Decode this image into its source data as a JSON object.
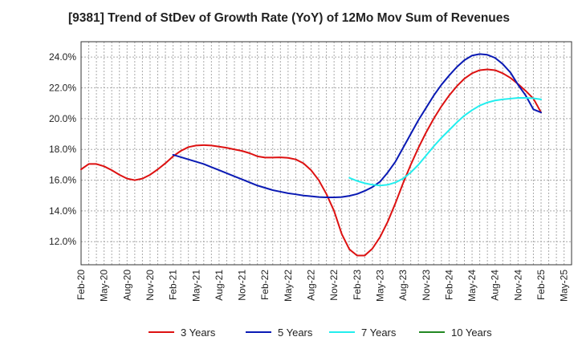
{
  "chart_data": {
    "type": "line",
    "title": "[9381]  Trend of StDev of Growth Rate (YoY) of 12Mo Mov Sum of Revenues",
    "xlabel": "",
    "ylabel": "",
    "x_tick_labels": [
      "Feb-20",
      "May-20",
      "Aug-20",
      "Nov-20",
      "Feb-21",
      "May-21",
      "Aug-21",
      "Nov-21",
      "Feb-22",
      "May-22",
      "Aug-22",
      "Nov-22",
      "Feb-23",
      "May-23",
      "Aug-23",
      "Nov-23",
      "Feb-24",
      "May-24",
      "Aug-24",
      "Nov-24",
      "Feb-25",
      "May-25"
    ],
    "y_tick_labels": [
      "12.0%",
      "14.0%",
      "16.0%",
      "18.0%",
      "20.0%",
      "22.0%",
      "24.0%"
    ],
    "y_ticks": [
      12,
      14,
      16,
      18,
      20,
      22,
      24
    ],
    "ylim": [
      10.5,
      25
    ],
    "grid": true,
    "legend_position": "bottom",
    "series": [
      {
        "name": "3 Years",
        "color": "#dd1111",
        "x": [
          0,
          1,
          2,
          3,
          4,
          5,
          6,
          7,
          8,
          9,
          10,
          11,
          12,
          13,
          14,
          15,
          16,
          17,
          18,
          19,
          20,
          21,
          22,
          23,
          24,
          25,
          26,
          27,
          28,
          29,
          30,
          31,
          32,
          33,
          34,
          35,
          36,
          37,
          38,
          39,
          40,
          41,
          42,
          43,
          44,
          45,
          46,
          47,
          48,
          49,
          50,
          51,
          52,
          53,
          54,
          55,
          56,
          57,
          58,
          59,
          60
        ],
        "values": [
          16.7,
          17.05,
          17.05,
          16.9,
          16.65,
          16.35,
          16.1,
          16.0,
          16.1,
          16.35,
          16.7,
          17.1,
          17.55,
          17.9,
          18.15,
          18.25,
          18.28,
          18.25,
          18.18,
          18.1,
          18.0,
          17.9,
          17.75,
          17.55,
          17.47,
          17.47,
          17.48,
          17.45,
          17.35,
          17.1,
          16.65,
          16.0,
          15.1,
          14.0,
          12.5,
          11.5,
          11.1,
          11.1,
          11.55,
          12.3,
          13.3,
          14.5,
          15.8,
          17.0,
          18.1,
          19.1,
          20.0,
          20.8,
          21.5,
          22.1,
          22.6,
          22.95,
          23.15,
          23.2,
          23.15,
          22.95,
          22.65,
          22.25,
          21.8,
          21.3,
          20.4
        ]
      },
      {
        "name": "5 Years",
        "color": "#0a1ab4",
        "x": [
          12,
          13,
          14,
          15,
          16,
          17,
          18,
          19,
          20,
          21,
          22,
          23,
          24,
          25,
          26,
          27,
          28,
          29,
          30,
          31,
          32,
          33,
          34,
          35,
          36,
          37,
          38,
          39,
          40,
          41,
          42,
          43,
          44,
          45,
          46,
          47,
          48,
          49,
          50,
          51,
          52,
          53,
          54,
          55,
          56,
          57,
          58,
          59,
          60
        ],
        "values": [
          17.65,
          17.5,
          17.35,
          17.2,
          17.05,
          16.85,
          16.65,
          16.45,
          16.25,
          16.05,
          15.85,
          15.65,
          15.5,
          15.35,
          15.25,
          15.15,
          15.08,
          15.0,
          14.95,
          14.9,
          14.88,
          14.88,
          14.9,
          14.98,
          15.1,
          15.3,
          15.55,
          15.9,
          16.5,
          17.2,
          18.1,
          19.0,
          19.9,
          20.7,
          21.5,
          22.2,
          22.8,
          23.35,
          23.8,
          24.1,
          24.2,
          24.15,
          23.95,
          23.55,
          23.0,
          22.2,
          21.5,
          20.6,
          20.4
        ]
      },
      {
        "name": "7 Years",
        "color": "#22eeee",
        "x": [
          35,
          36,
          37,
          38,
          39,
          40,
          41,
          42,
          43,
          44,
          45,
          46,
          47,
          48,
          49,
          50,
          51,
          52,
          53,
          54,
          55,
          56,
          57,
          58,
          59,
          60
        ],
        "values": [
          16.15,
          15.95,
          15.8,
          15.7,
          15.65,
          15.7,
          15.85,
          16.1,
          16.5,
          17.0,
          17.6,
          18.2,
          18.75,
          19.25,
          19.75,
          20.2,
          20.55,
          20.85,
          21.05,
          21.18,
          21.25,
          21.3,
          21.35,
          21.35,
          21.32,
          21.25
        ]
      },
      {
        "name": "10 Years",
        "color": "#228822",
        "x": [],
        "values": []
      }
    ]
  }
}
